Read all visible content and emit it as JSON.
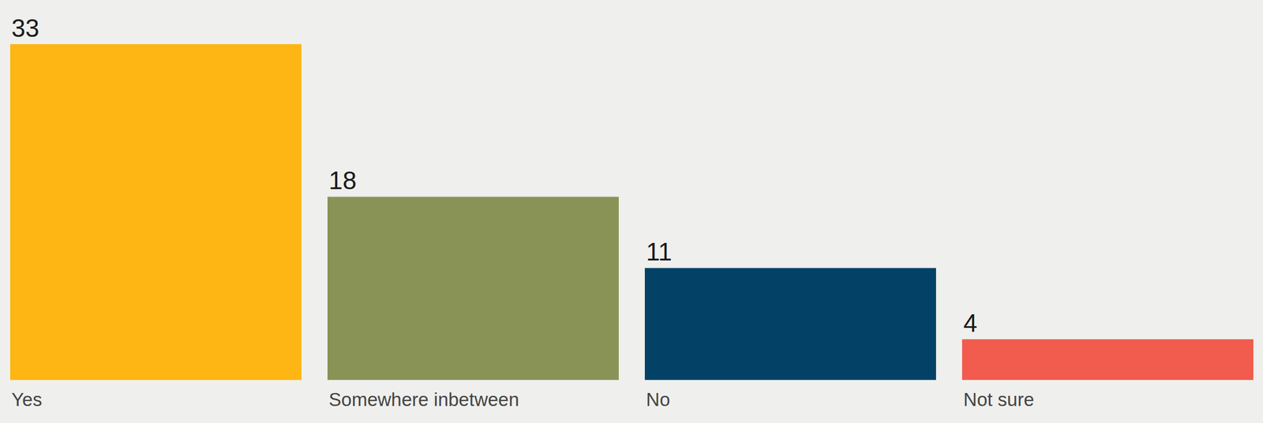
{
  "chart_data": {
    "type": "bar",
    "categories": [
      "Yes",
      "Somewhere inbetween",
      "No",
      "Not sure"
    ],
    "values": [
      33,
      18,
      11,
      4
    ],
    "colors": [
      "#fdb614",
      "#8a9356",
      "#034266",
      "#f25c4e"
    ],
    "ylim": [
      0,
      33
    ],
    "data_labels": true,
    "tick_labels": "x"
  }
}
